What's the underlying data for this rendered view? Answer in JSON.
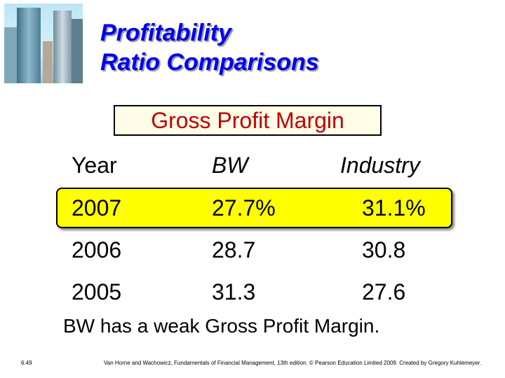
{
  "title": {
    "line1": "Profitability",
    "line2": "Ratio Comparisons"
  },
  "subtitle": "Gross Profit Margin",
  "table": {
    "headers": [
      "Year",
      "BW",
      "Industry"
    ],
    "rows": [
      {
        "year": "2007",
        "bw": "27.7%",
        "industry": "31.1%",
        "highlighted": true
      },
      {
        "year": "2006",
        "bw": "28.7",
        "industry": "30.8",
        "highlighted": false
      },
      {
        "year": "2005",
        "bw": "31.3",
        "industry": "27.6",
        "highlighted": false
      }
    ]
  },
  "conclusion": "BW has a weak Gross Profit Margin.",
  "footer": {
    "slide_number": "6.49",
    "citation": "Van Horne and Wachowicz, Fundamentals of Financial Management, 13th edition. © Pearson Education Limited 2009. Created by Gregory Kuhlemeyer."
  },
  "colors": {
    "title": "#0000ee",
    "subtitle": "#c00000",
    "highlight": "#ffff00"
  }
}
